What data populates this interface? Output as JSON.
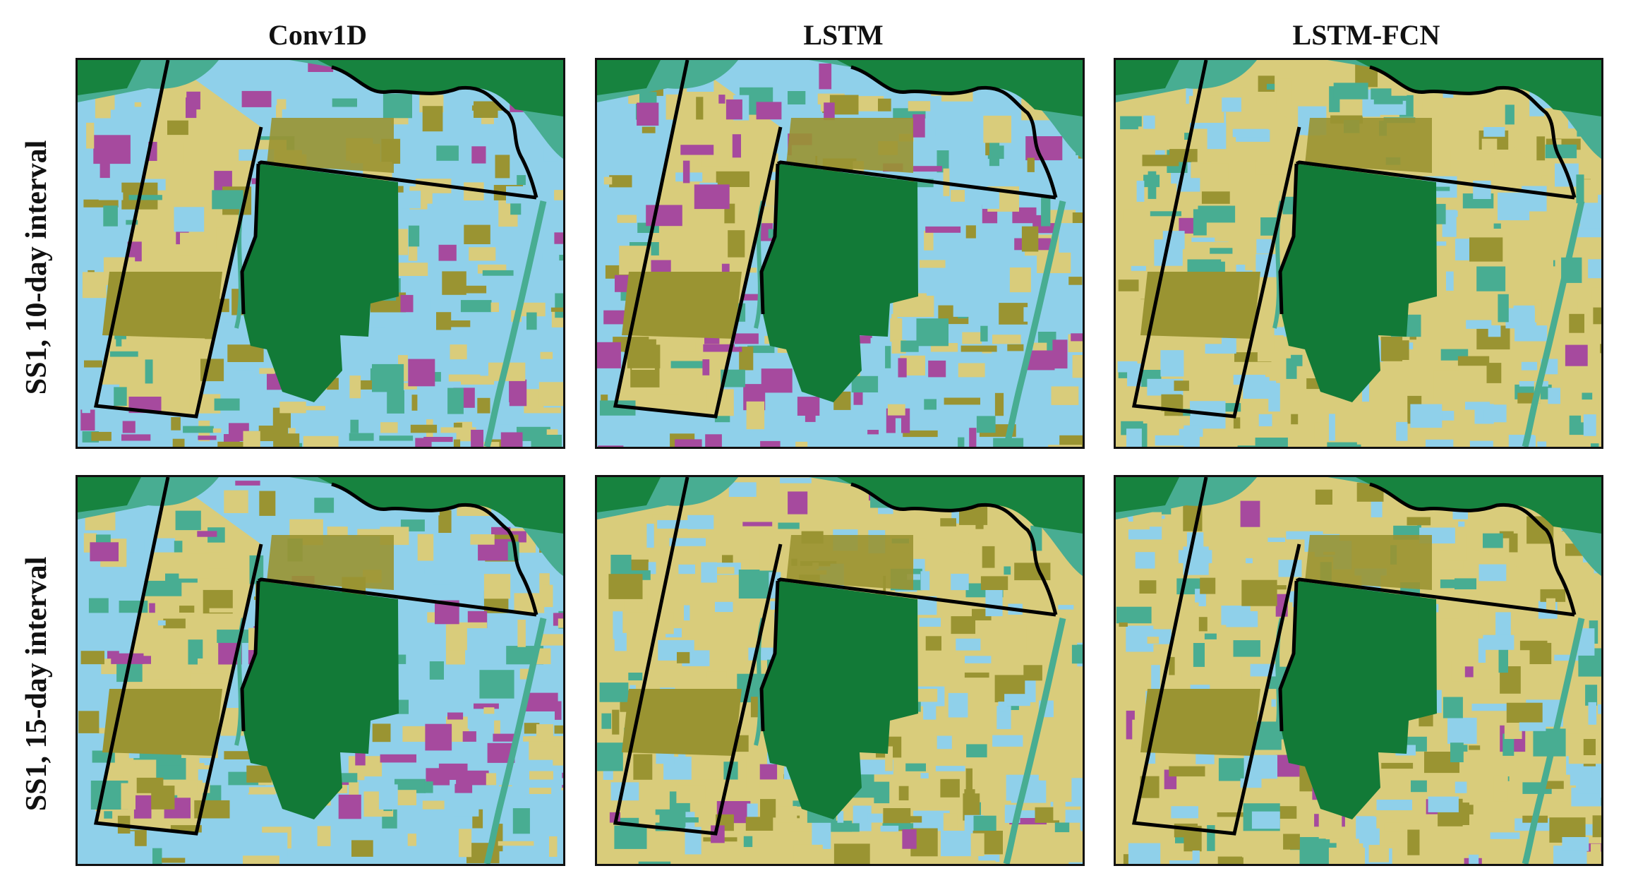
{
  "columns": [
    "Conv1D",
    "LSTM",
    "LSTM-FCN"
  ],
  "rows": [
    "SS1,   10-day interval",
    "SS1,  15-day interval"
  ],
  "colors": {
    "water_blue": "#8fd0ea",
    "crop_yellow": "#d9cc7b",
    "olive": "#9a9432",
    "forest": "#127a37",
    "teal": "#48ad92",
    "dark_green": "#17833f",
    "magenta": "#a64a9e",
    "outline": "#000000"
  },
  "panels": [
    {
      "row": 0,
      "col": 0,
      "dominant": "water_blue",
      "seed": 11,
      "magenta_level": 0.55
    },
    {
      "row": 0,
      "col": 1,
      "dominant": "water_blue",
      "seed": 23,
      "magenta_level": 0.9
    },
    {
      "row": 0,
      "col": 2,
      "dominant": "crop_yellow",
      "seed": 37,
      "magenta_level": 0.1
    },
    {
      "row": 1,
      "col": 0,
      "dominant": "water_blue",
      "seed": 41,
      "magenta_level": 0.6
    },
    {
      "row": 1,
      "col": 1,
      "dominant": "crop_yellow",
      "seed": 53,
      "magenta_level": 0.15
    },
    {
      "row": 1,
      "col": 2,
      "dominant": "crop_yellow",
      "seed": 67,
      "magenta_level": 0.1
    }
  ]
}
